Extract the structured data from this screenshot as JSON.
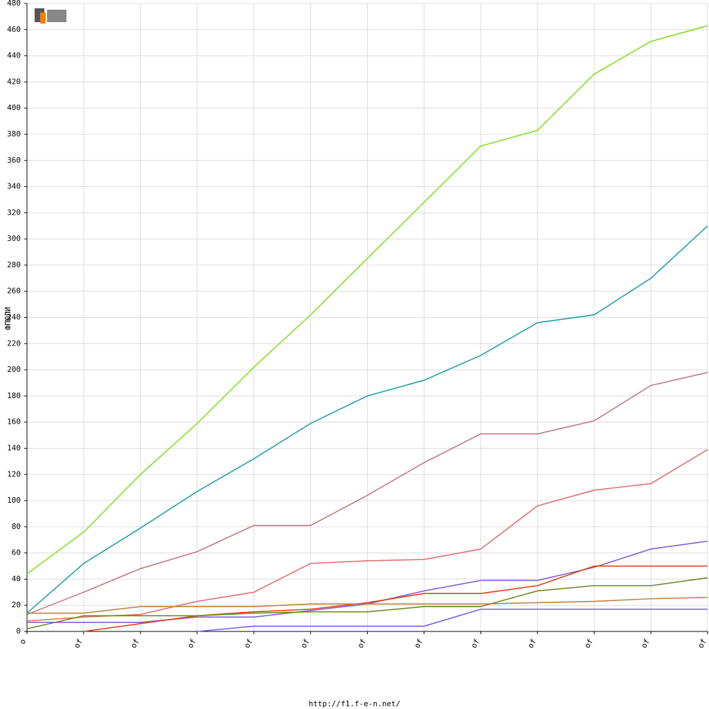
{
  "chart_data": {
    "type": "line",
    "y_label": "ФПЮЛИ",
    "footer": "http://f1.f-e-n.net/",
    "categories": [
      "o",
      "of",
      "of",
      "of",
      "of",
      "of",
      "of",
      "of",
      "of",
      "of",
      "of",
      "of",
      "of"
    ],
    "ylim": [
      0,
      480
    ],
    "yticks": [
      0,
      20,
      40,
      60,
      80,
      100,
      120,
      140,
      160,
      180,
      200,
      220,
      240,
      260,
      280,
      300,
      320,
      340,
      360,
      380,
      400,
      420,
      440,
      460,
      480
    ],
    "grid": true,
    "series": [
      {
        "color": "#80e020",
        "values": [
          44,
          76,
          120,
          159,
          202,
          242,
          285,
          328,
          371,
          383,
          426,
          451,
          463
        ]
      },
      {
        "color": "#20a0a8",
        "values": [
          14,
          52,
          79,
          107,
          132,
          159,
          180,
          192,
          211,
          236,
          242,
          270,
          310
        ]
      },
      {
        "color": "#c07880",
        "values": [
          13,
          30,
          48,
          61,
          81,
          81,
          104,
          129,
          151,
          151,
          161,
          188,
          198
        ]
      },
      {
        "color": "#e07070",
        "values": [
          8,
          11,
          13,
          23,
          30,
          52,
          54,
          55,
          63,
          96,
          108,
          113,
          139
        ]
      },
      {
        "color": "#8060d0",
        "values": [
          7,
          7,
          7,
          11,
          11,
          16,
          21,
          31,
          39,
          39,
          49,
          63,
          69
        ]
      },
      {
        "color": "#e04010",
        "values": [
          null,
          0,
          6,
          12,
          15,
          17,
          22,
          29,
          29,
          35,
          50,
          50,
          50
        ]
      },
      {
        "color": "#6a8a20",
        "values": [
          2,
          12,
          12,
          12,
          14,
          15,
          15,
          19,
          19,
          31,
          35,
          35,
          41
        ]
      },
      {
        "color": "#c08040",
        "values": [
          14,
          14,
          19,
          19,
          19,
          21,
          21,
          21,
          21,
          22,
          23,
          25,
          26
        ]
      },
      {
        "color": "#7a5af0",
        "values": [
          null,
          null,
          null,
          0,
          4,
          4,
          4,
          4,
          17,
          17,
          17,
          17,
          17
        ]
      }
    ]
  }
}
